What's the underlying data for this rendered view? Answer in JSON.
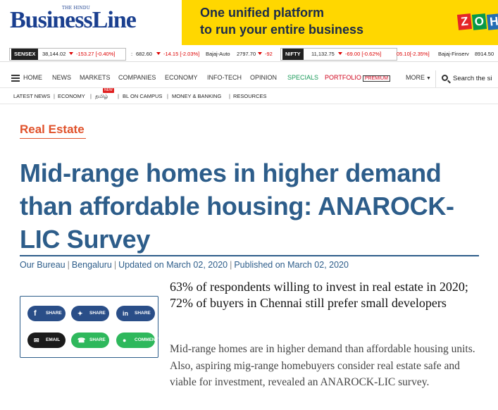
{
  "header": {
    "logo_small": "THE HINDU",
    "logo": "BusinessLine",
    "ad": {
      "line1": "One unified platform",
      "line2": "to run your entire business",
      "brand_letters": [
        "Z",
        "O",
        "H"
      ],
      "brand_colors": [
        "#e42527",
        "#089949",
        "#226db4"
      ]
    }
  },
  "ticker": {
    "sensex": {
      "label": "SENSEX",
      "value": "38,144.02",
      "change": "-153.27 [-0.40%]"
    },
    "stock1": {
      "value": "682.60",
      "change": "-14.15 [-2.03%]"
    },
    "stock2": {
      "name": "Bajaj-Auto",
      "value": "2797.70",
      "change": "-92"
    },
    "nifty": {
      "label": "NIFTY",
      "value": "11,132.75",
      "change": "-69.00 [-0.62%]"
    },
    "stock3": {
      "change": "05.10[-2.35%]"
    },
    "stock4": {
      "name": "Bajaj-Finserv",
      "value": "8914.50"
    }
  },
  "nav": {
    "items": [
      "HOME",
      "NEWS",
      "MARKETS",
      "COMPANIES",
      "ECONOMY",
      "INFO-TECH",
      "OPINION",
      "SPECIALS",
      "PORTFOLIO",
      "MORE"
    ],
    "premium": "PREMIUM",
    "search": "Search the si"
  },
  "subnav": {
    "items": [
      "LATEST NEWS",
      "ECONOMY",
      "தமிழ்",
      "BL ON CAMPUS",
      "MONEY & BANKING",
      "RESOURCES"
    ],
    "new_badge": "NEW"
  },
  "article": {
    "section": "Real Estate",
    "headline": "Mid-range homes in higher demand than affordable housing: ANAROCK-LIC Survey",
    "byline": {
      "author": "Our Bureau",
      "location": "Bengaluru",
      "updated": "Updated on March 02, 2020",
      "published": "Published on March 02, 2020"
    },
    "summary": "63% of respondents willing to invest in real estate in 2020; 72% of buyers in Chennai still prefer small developers",
    "body": "Mid-range homes are in higher demand than affordable housing units. Also, aspiring mig-range homebuyers consider real estate safe and viable for investment, revealed an ANAROCK-LIC survey."
  },
  "share": {
    "facebook": "SHARE",
    "twitter": "SHARE",
    "linkedin": "SHARE",
    "email": "EMAIL",
    "whatsapp": "SHARE",
    "comment": "COMMENT"
  },
  "colors": {
    "brand_blue": "#1a3f8f",
    "headline_blue": "#2d5d8a",
    "section_orange": "#e0522b",
    "ad_yellow": "#ffd700",
    "specials_green": "#1a9a5a",
    "portfolio_red": "#d0021b"
  }
}
